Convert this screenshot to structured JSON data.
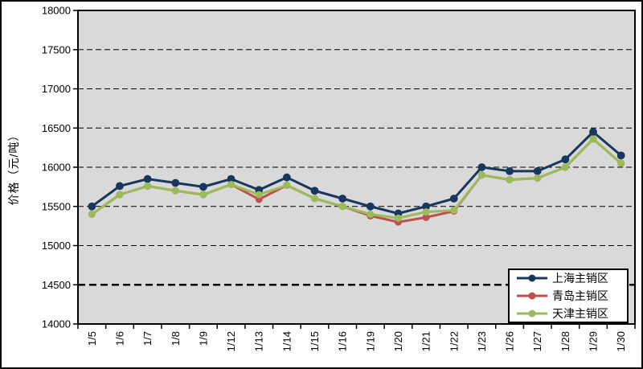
{
  "chart_data": {
    "type": "line",
    "title": "",
    "xlabel": "",
    "ylabel": "价格（元/吨）",
    "ylim": [
      14000,
      18000
    ],
    "yticks": [
      18000,
      17500,
      17000,
      16500,
      16000,
      15500,
      15000,
      14500,
      14000
    ],
    "emphasized_gridline": 14500,
    "grid": "dashed horizontal",
    "plot_bg": "#D9D9D9",
    "axis_color": "#000000",
    "legend_position": "bottom-right",
    "categories": [
      "1/5",
      "1/6",
      "1/7",
      "1/8",
      "1/9",
      "1/12",
      "1/13",
      "1/14",
      "1/15",
      "1/16",
      "1/19",
      "1/20",
      "1/21",
      "1/22",
      "1/23",
      "1/26",
      "1/27",
      "1/28",
      "1/29",
      "1/30"
    ],
    "series": [
      {
        "name": "上海主销区",
        "color": "#17375D",
        "values": [
          15500,
          15760,
          15850,
          15800,
          15750,
          15850,
          15710,
          15870,
          15700,
          15600,
          15500,
          15410,
          15500,
          15600,
          16000,
          15950,
          15950,
          16100,
          16450,
          16150
        ]
      },
      {
        "name": "青岛主销区",
        "color": "#C0504D",
        "values": [
          15400,
          15650,
          15760,
          15700,
          15650,
          15780,
          15590,
          15770,
          15600,
          15500,
          15380,
          15300,
          15360,
          15440,
          15900,
          15840,
          15860,
          16000,
          16360,
          16050
        ]
      },
      {
        "name": "天津主销区",
        "color": "#9BBB59",
        "values": [
          15400,
          15650,
          15760,
          15700,
          15650,
          15780,
          15650,
          15770,
          15600,
          15500,
          15400,
          15350,
          15430,
          15450,
          15900,
          15840,
          15860,
          16000,
          16360,
          16050
        ]
      }
    ]
  }
}
